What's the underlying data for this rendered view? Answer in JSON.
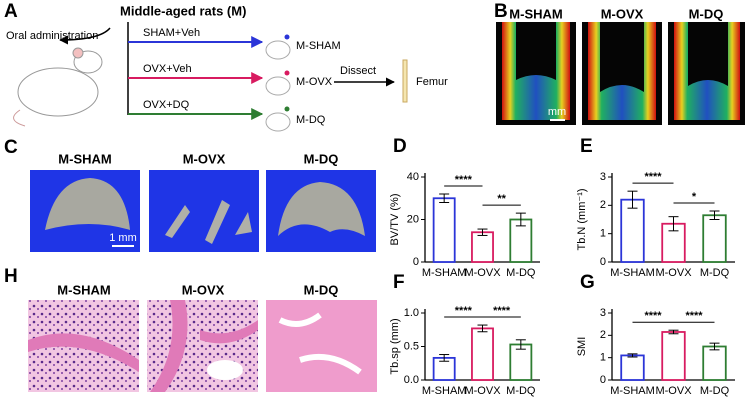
{
  "panel_a": {
    "label": "A",
    "title": "Middle-aged rats (M)",
    "oral": "Oral administration",
    "groups": [
      "SHAM+Veh",
      "OVX+Veh",
      "OVX+DQ"
    ],
    "rats": [
      "M-SHAM",
      "M-OVX",
      "M-DQ"
    ],
    "dissect": "Dissect",
    "femur": "Femur"
  },
  "panel_b": {
    "label": "B",
    "images": [
      "M-SHAM",
      "M-OVX",
      "M-DQ"
    ],
    "scale": "mm"
  },
  "panel_c": {
    "label": "C",
    "images": [
      "M-SHAM",
      "M-OVX",
      "M-DQ"
    ],
    "scale": "1 mm"
  },
  "panel_h": {
    "label": "H",
    "images": [
      "M-SHAM",
      "M-OVX",
      "M-DQ"
    ]
  },
  "chart_data": [
    {
      "type": "bar",
      "label": "D",
      "ylabel": "BV/TV (%)",
      "categories": [
        "M-SHAM",
        "M-OVX",
        "M-DQ"
      ],
      "values": [
        30,
        14,
        20
      ],
      "errors": [
        2,
        1.5,
        3
      ],
      "colors": [
        "#2b35d8",
        "#d81b60",
        "#2e7d32"
      ],
      "ylim": [
        0,
        40
      ],
      "yticks": [
        0,
        20,
        40
      ],
      "significance": [
        {
          "text": "****",
          "from": "M-SHAM",
          "to": "M-OVX"
        },
        {
          "text": "**",
          "from": "M-OVX",
          "to": "M-DQ"
        }
      ]
    },
    {
      "type": "bar",
      "label": "E",
      "ylabel": "Tb.N (mm⁻¹)",
      "categories": [
        "M-SHAM",
        "M-OVX",
        "M-DQ"
      ],
      "values": [
        2.2,
        1.35,
        1.65
      ],
      "errors": [
        0.3,
        0.25,
        0.15
      ],
      "colors": [
        "#2b35d8",
        "#d81b60",
        "#2e7d32"
      ],
      "ylim": [
        0,
        3
      ],
      "yticks": [
        0,
        1,
        2,
        3
      ],
      "significance": [
        {
          "text": "****",
          "from": "M-SHAM",
          "to": "M-OVX"
        },
        {
          "text": "*",
          "from": "M-OVX",
          "to": "M-DQ"
        }
      ]
    },
    {
      "type": "bar",
      "label": "F",
      "ylabel": "Tb.sp (mm)",
      "categories": [
        "M-SHAM",
        "M-OVX",
        "M-DQ"
      ],
      "values": [
        0.33,
        0.77,
        0.53
      ],
      "errors": [
        0.05,
        0.05,
        0.07
      ],
      "colors": [
        "#2b35d8",
        "#d81b60",
        "#2e7d32"
      ],
      "ylim": [
        0,
        1
      ],
      "yticks": [
        {
          "value": 0,
          "label": "0.0"
        },
        {
          "value": 0.5,
          "label": "0.5"
        },
        {
          "value": 1,
          "label": "1.0"
        }
      ],
      "significance": [
        {
          "text": "****",
          "from": "M-SHAM",
          "to": "M-OVX"
        },
        {
          "text": "****",
          "from": "M-OVX",
          "to": "M-DQ"
        }
      ]
    },
    {
      "type": "bar",
      "label": "G",
      "ylabel": "SMI",
      "categories": [
        "M-SHAM",
        "M-OVX",
        "M-DQ"
      ],
      "values": [
        1.1,
        2.15,
        1.5
      ],
      "errors": [
        0.07,
        0.08,
        0.15
      ],
      "colors": [
        "#2b35d8",
        "#d81b60",
        "#2e7d32"
      ],
      "ylim": [
        0,
        3
      ],
      "yticks": [
        0,
        1,
        2,
        3
      ],
      "significance": [
        {
          "text": "****",
          "from": "M-SHAM",
          "to": "M-OVX"
        },
        {
          "text": "****",
          "from": "M-OVX",
          "to": "M-DQ"
        }
      ]
    }
  ]
}
